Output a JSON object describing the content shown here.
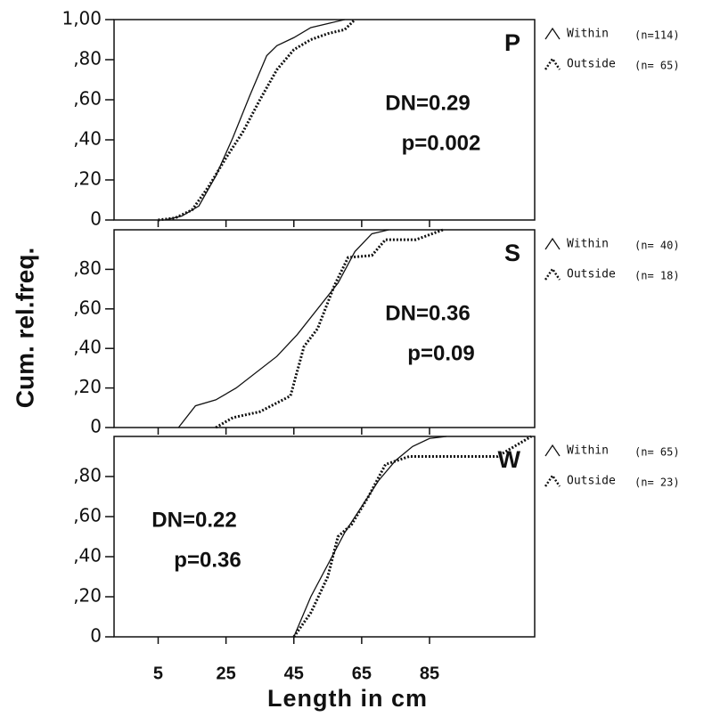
{
  "chart_data": [
    {
      "type": "line",
      "panel_label": "P",
      "stat_dn": "DN=0.29",
      "stat_p": "p=0.002",
      "xlim": [
        -8,
        116
      ],
      "xticks": [
        5,
        25,
        45,
        65,
        85
      ],
      "ylim": [
        0,
        1
      ],
      "yticks": [
        0,
        {
          "value": 0.2,
          "label": ",20"
        },
        {
          "value": 0.4,
          "label": ",40"
        },
        {
          "value": 0.6,
          "label": ",60"
        },
        {
          "value": 0.8,
          "label": ",80"
        },
        {
          "value": 1,
          "label": "1,00"
        }
      ],
      "series": [
        {
          "name": "Within",
          "count_label": "(n=114)",
          "color": "#111111",
          "style": "solid",
          "x": [
            7,
            12,
            17,
            22,
            27,
            32,
            37,
            40,
            45,
            50,
            55,
            60
          ],
          "values": [
            0,
            0.02,
            0.07,
            0.22,
            0.41,
            0.62,
            0.82,
            0.87,
            0.91,
            0.96,
            0.98,
            1.0
          ]
        },
        {
          "name": "Outside",
          "count_label": "(n= 65)",
          "color": "#111111",
          "style": "dotted",
          "x": [
            5,
            10,
            15,
            20,
            25,
            30,
            35,
            40,
            45,
            50,
            55,
            60,
            63
          ],
          "values": [
            0,
            0.01,
            0.05,
            0.17,
            0.31,
            0.44,
            0.6,
            0.75,
            0.85,
            0.9,
            0.93,
            0.95,
            1.0
          ]
        }
      ]
    },
    {
      "type": "line",
      "panel_label": "S",
      "stat_dn": "DN=0.36",
      "stat_p": "p=0.09",
      "ylabel": "Cum. rel.freq.",
      "xlim": [
        -8,
        116
      ],
      "xticks": [
        5,
        25,
        45,
        65,
        85
      ],
      "ylim": [
        0,
        1
      ],
      "yticks": [
        0,
        {
          "value": 0.2,
          "label": ",20"
        },
        {
          "value": 0.4,
          "label": ",40"
        },
        {
          "value": 0.6,
          "label": ",60"
        },
        {
          "value": 0.8,
          "label": ",80"
        }
      ],
      "series": [
        {
          "name": "Within",
          "count_label": "(n= 40)",
          "color": "#111111",
          "style": "solid",
          "x": [
            11,
            16,
            22,
            28,
            40,
            46,
            58,
            63,
            68,
            73
          ],
          "values": [
            0,
            0.11,
            0.14,
            0.2,
            0.36,
            0.47,
            0.73,
            0.89,
            0.98,
            1.0
          ]
        },
        {
          "name": "Outside",
          "count_label": "(n= 18)",
          "color": "#111111",
          "style": "dotted",
          "x": [
            22,
            27,
            35,
            44,
            48,
            52,
            57,
            61,
            68,
            72,
            81,
            89
          ],
          "values": [
            0,
            0.05,
            0.08,
            0.16,
            0.41,
            0.5,
            0.72,
            0.86,
            0.87,
            0.95,
            0.95,
            1.0
          ]
        }
      ]
    },
    {
      "type": "line",
      "panel_label": "W",
      "stat_dn": "DN=0.22",
      "stat_p": "p=0.36",
      "xlabel": "Length in cm",
      "xlim": [
        -8,
        116
      ],
      "xticks": [
        5,
        25,
        45,
        65,
        85
      ],
      "ylim": [
        0,
        1
      ],
      "yticks": [
        0,
        {
          "value": 0.2,
          "label": ",20"
        },
        {
          "value": 0.4,
          "label": ",40"
        },
        {
          "value": 0.6,
          "label": ",60"
        },
        {
          "value": 0.8,
          "label": ",80"
        }
      ],
      "series": [
        {
          "name": "Within",
          "count_label": "(n= 65)",
          "color": "#111111",
          "style": "solid",
          "x": [
            45,
            50,
            55,
            60,
            65,
            70,
            75,
            80,
            85,
            90
          ],
          "values": [
            0,
            0.2,
            0.36,
            0.52,
            0.65,
            0.78,
            0.88,
            0.95,
            0.99,
            1.0
          ]
        },
        {
          "name": "Outside",
          "count_label": "(n= 23)",
          "color": "#111111",
          "style": "dotted",
          "x": [
            45,
            50,
            55,
            58,
            62,
            67,
            72,
            79,
            105,
            115
          ],
          "values": [
            0,
            0.12,
            0.3,
            0.5,
            0.56,
            0.7,
            0.86,
            0.9,
            0.9,
            1.0
          ]
        }
      ]
    }
  ]
}
